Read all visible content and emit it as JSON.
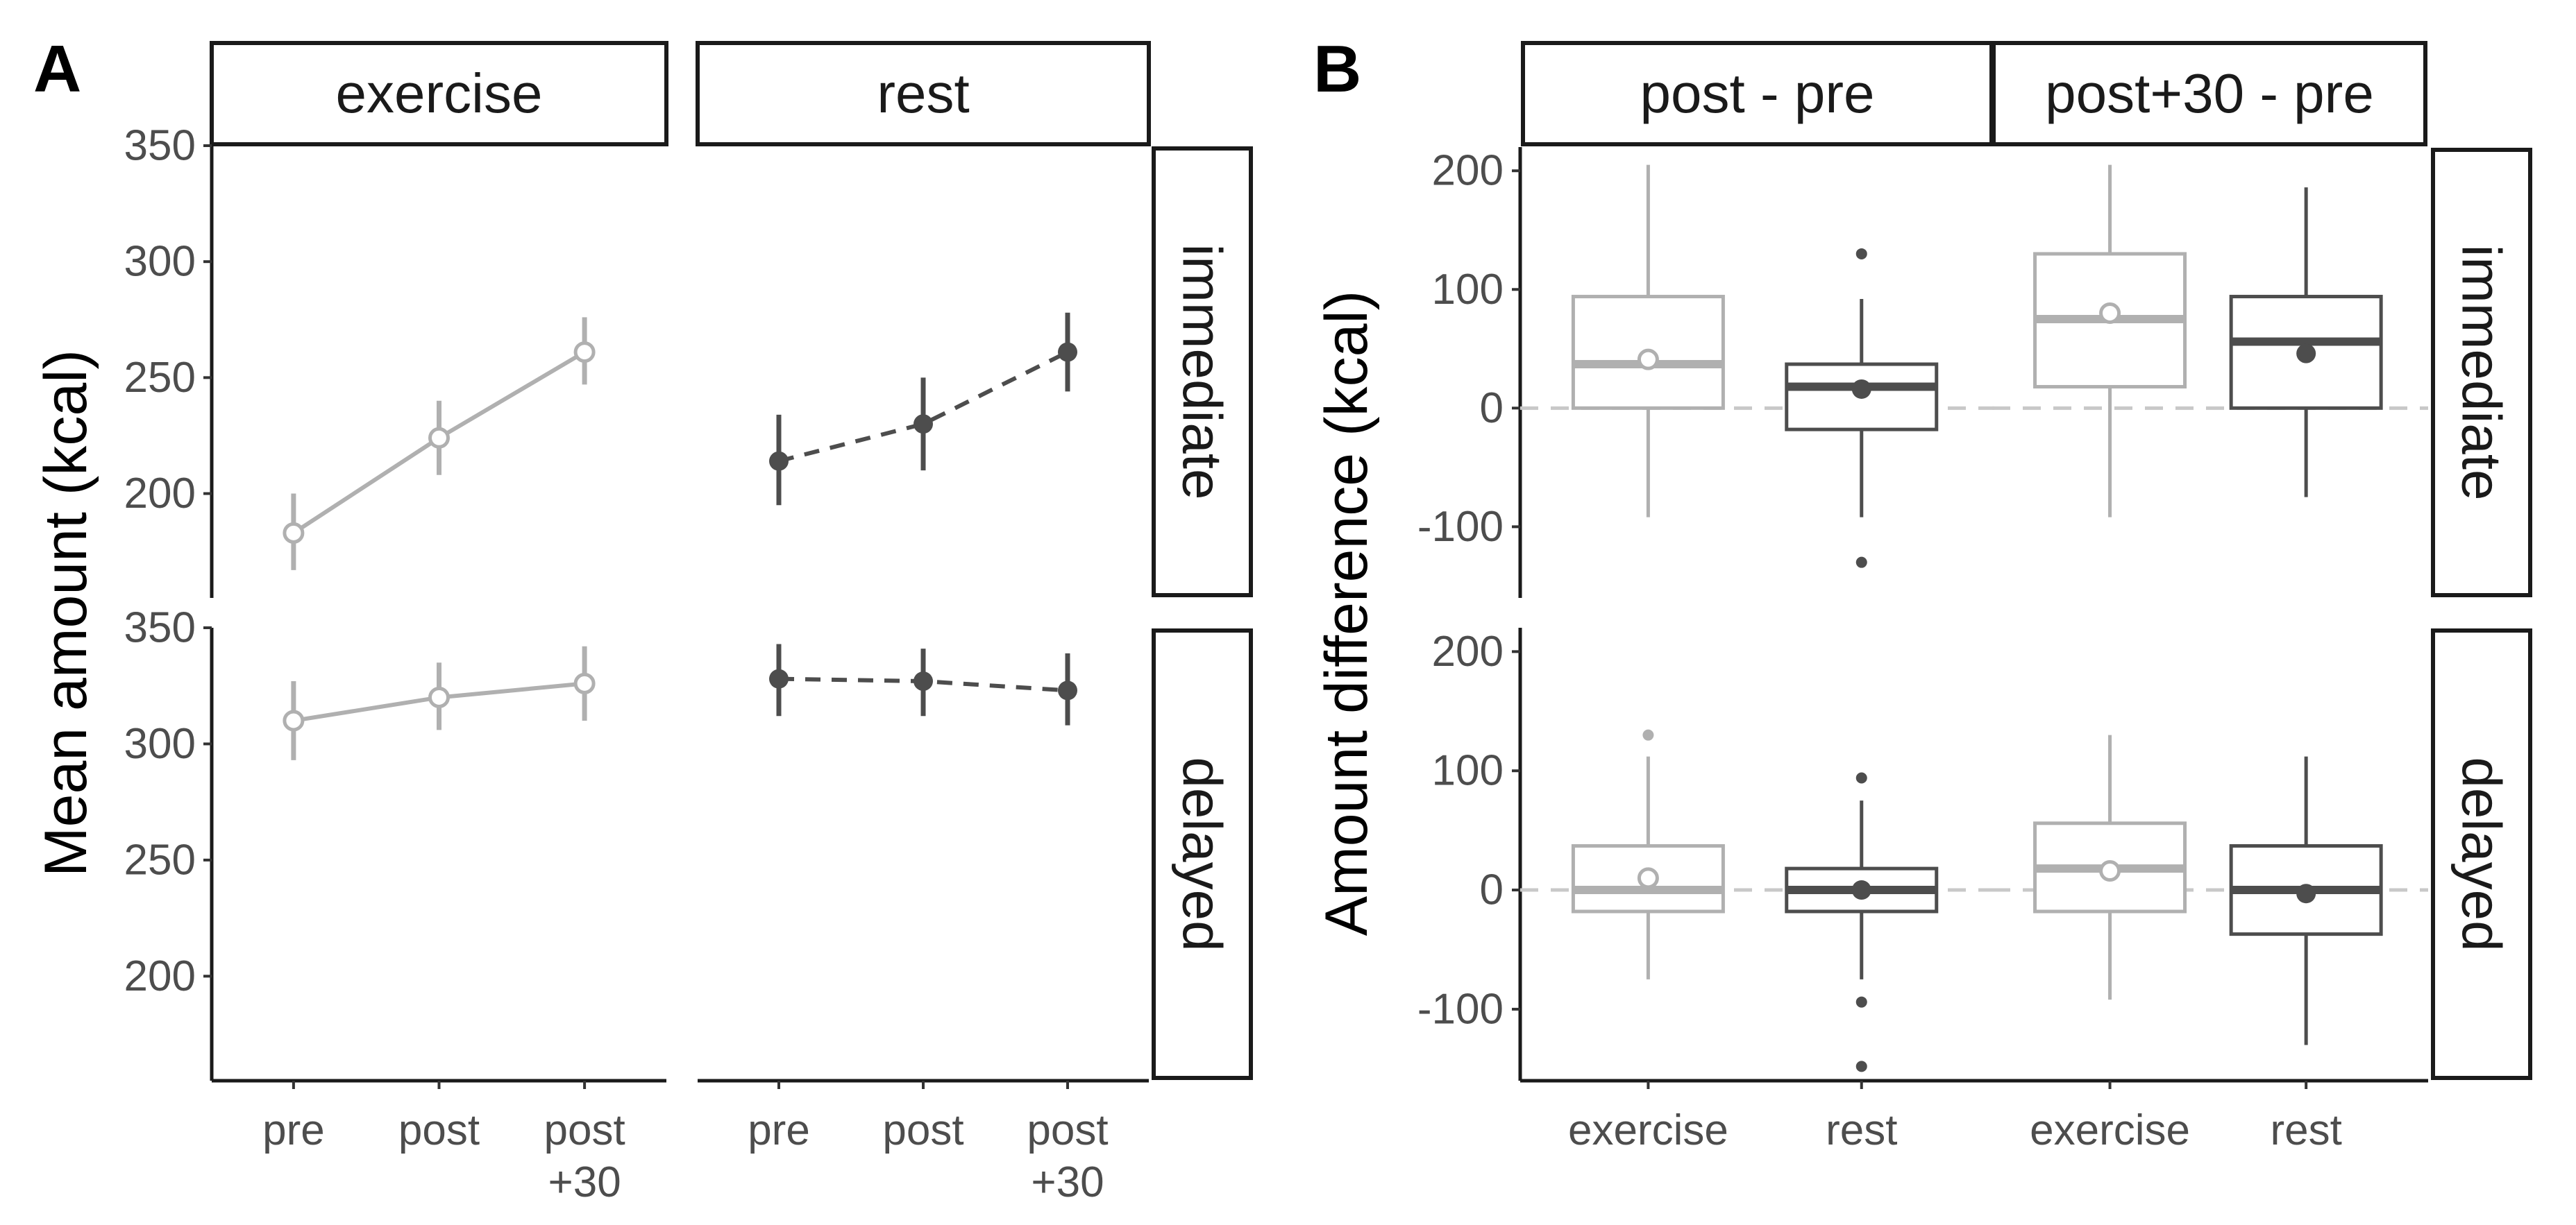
{
  "figure": {
    "panel_labels": [
      "A",
      "B"
    ]
  },
  "chart_data": [
    {
      "type": "line",
      "panel": "A",
      "ylabel": "Mean amount (kcal)",
      "xlabel": "",
      "categories": [
        "pre",
        "post",
        "post\n+30"
      ],
      "column_strips": [
        "exercise",
        "rest"
      ],
      "row_strips": [
        "immediate",
        "delayed"
      ],
      "ylim": [
        155,
        350
      ],
      "yticks": [
        200,
        250,
        300,
        350
      ],
      "grid": false,
      "series": [
        {
          "facet_col": "exercise",
          "facet_row": "immediate",
          "color": "#b0b0b0",
          "marker": "open-circle",
          "linestyle": "solid",
          "values": [
            183,
            224,
            261
          ],
          "lower": [
            167,
            208,
            247
          ],
          "upper": [
            200,
            240,
            276
          ]
        },
        {
          "facet_col": "rest",
          "facet_row": "immediate",
          "color": "#4d4d4d",
          "marker": "filled-circle",
          "linestyle": "dashed",
          "values": [
            214,
            230,
            261
          ],
          "lower": [
            195,
            210,
            244
          ],
          "upper": [
            234,
            250,
            278
          ]
        },
        {
          "facet_col": "exercise",
          "facet_row": "delayed",
          "color": "#b0b0b0",
          "marker": "open-circle",
          "linestyle": "solid",
          "values": [
            310,
            320,
            326
          ],
          "lower": [
            293,
            306,
            310
          ],
          "upper": [
            327,
            335,
            342
          ]
        },
        {
          "facet_col": "rest",
          "facet_row": "delayed",
          "color": "#4d4d4d",
          "marker": "filled-circle",
          "linestyle": "dashed",
          "values": [
            328,
            327,
            323
          ],
          "lower": [
            312,
            312,
            308
          ],
          "upper": [
            343,
            341,
            339
          ]
        }
      ]
    },
    {
      "type": "box",
      "panel": "B",
      "ylabel": "Amount difference (kcal)",
      "xlabel": "",
      "categories": [
        "exercise",
        "rest"
      ],
      "column_strips": [
        "post - pre",
        "post+30 - pre"
      ],
      "row_strips": [
        "immediate",
        "delayed"
      ],
      "ylim": [
        -160,
        220
      ],
      "yticks": [
        -100,
        0,
        100,
        200
      ],
      "reference_line": 0,
      "grid": false,
      "colors": {
        "exercise": "#b0b0b0",
        "rest": "#4d4d4d"
      },
      "boxes": [
        {
          "facet_col": "post - pre",
          "facet_row": "immediate",
          "group": "exercise",
          "min": -92,
          "q1": 0,
          "median": 37,
          "q3": 94,
          "max": 205,
          "mean": 41,
          "outliers": []
        },
        {
          "facet_col": "post - pre",
          "facet_row": "immediate",
          "group": "rest",
          "min": -92,
          "q1": -18,
          "median": 18,
          "q3": 37,
          "max": 92,
          "mean": 16,
          "outliers": [
            130,
            -130
          ]
        },
        {
          "facet_col": "post+30 - pre",
          "facet_row": "immediate",
          "group": "exercise",
          "min": -92,
          "q1": 18,
          "median": 75,
          "q3": 130,
          "max": 205,
          "mean": 80,
          "outliers": []
        },
        {
          "facet_col": "post+30 - pre",
          "facet_row": "immediate",
          "group": "rest",
          "min": -75,
          "q1": 0,
          "median": 56,
          "q3": 94,
          "max": 186,
          "mean": 46,
          "outliers": []
        },
        {
          "facet_col": "post - pre",
          "facet_row": "delayed",
          "group": "exercise",
          "min": -75,
          "q1": -18,
          "median": 0,
          "q3": 37,
          "max": 112,
          "mean": 10,
          "outliers": [
            130
          ]
        },
        {
          "facet_col": "post - pre",
          "facet_row": "delayed",
          "group": "rest",
          "min": -75,
          "q1": -18,
          "median": 0,
          "q3": 18,
          "max": 75,
          "mean": 0,
          "outliers": [
            94,
            -94,
            -148
          ]
        },
        {
          "facet_col": "post+30 - pre",
          "facet_row": "delayed",
          "group": "exercise",
          "min": -92,
          "q1": -18,
          "median": 18,
          "q3": 56,
          "max": 130,
          "mean": 16,
          "outliers": []
        },
        {
          "facet_col": "post+30 - pre",
          "facet_row": "delayed",
          "group": "rest",
          "min": -130,
          "q1": -37,
          "median": 0,
          "q3": 37,
          "max": 112,
          "mean": -3,
          "outliers": []
        }
      ]
    }
  ]
}
